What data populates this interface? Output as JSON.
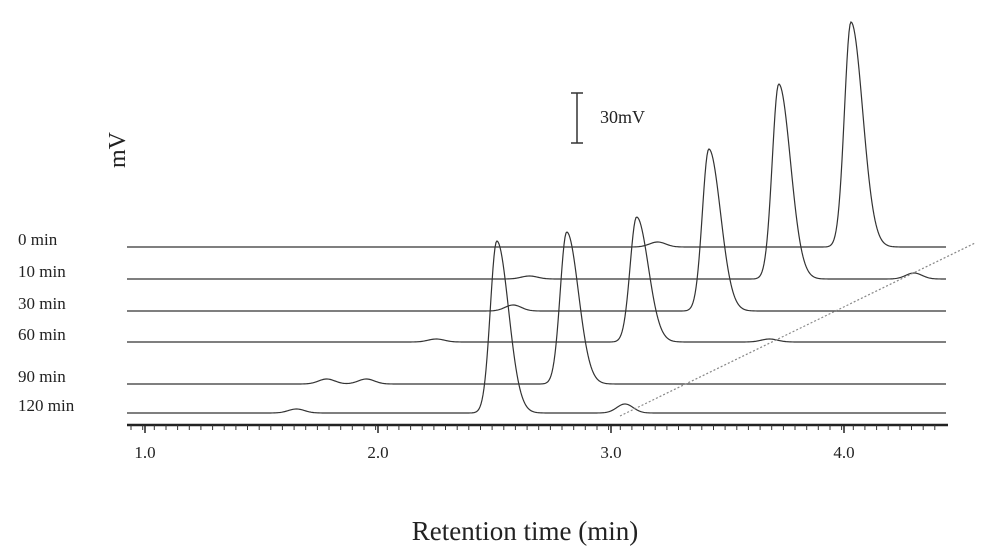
{
  "chart_data": {
    "type": "line",
    "xlabel": "Retention time (min)",
    "ylabel": "mV",
    "xlim": [
      0.95,
      4.35
    ],
    "x_ticks": [
      "1.0",
      "2.0",
      "3.0",
      "4.0"
    ],
    "scale_bar": {
      "value": 30,
      "label": "30mV"
    },
    "series": [
      {
        "name": "0 min",
        "peaks": [
          {
            "x": 4.03,
            "height": 225
          },
          {
            "x": 3.2,
            "height": 5
          }
        ]
      },
      {
        "name": "10 min",
        "peaks": [
          {
            "x": 3.72,
            "height": 195
          },
          {
            "x": 4.3,
            "height": 6
          },
          {
            "x": 2.65,
            "height": 3
          }
        ]
      },
      {
        "name": "30 min",
        "peaks": [
          {
            "x": 3.42,
            "height": 162
          },
          {
            "x": 2.58,
            "height": 6
          }
        ]
      },
      {
        "name": "60 min",
        "peaks": [
          {
            "x": 3.11,
            "height": 125
          },
          {
            "x": 3.68,
            "height": 3
          },
          {
            "x": 2.25,
            "height": 3
          }
        ]
      },
      {
        "name": "90 min",
        "peaks": [
          {
            "x": 2.81,
            "height": 152
          },
          {
            "x": 1.78,
            "height": 5
          },
          {
            "x": 1.95,
            "height": 5
          }
        ]
      },
      {
        "name": "120 min",
        "peaks": [
          {
            "x": 2.51,
            "height": 172
          },
          {
            "x": 3.06,
            "height": 9
          },
          {
            "x": 1.65,
            "height": 4
          }
        ]
      }
    ],
    "legend": "left"
  }
}
